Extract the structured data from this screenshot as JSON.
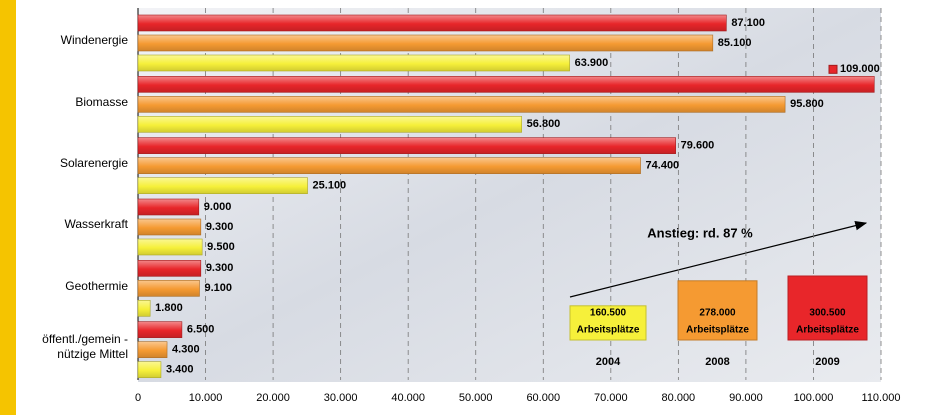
{
  "chart_data": {
    "type": "bar",
    "orientation": "horizontal",
    "categories": [
      "Windenergie",
      "Biomasse",
      "Solarenergie",
      "Wasserkraft",
      "Geothermie",
      "öffentl./gemein -\nnützige Mittel"
    ],
    "series": [
      {
        "name": "2009",
        "color": "#e8262a",
        "values": [
          87100,
          109000,
          79600,
          9000,
          9300,
          6500
        ],
        "value_labels": [
          "87.100",
          "109.000",
          "79.600",
          "9.000",
          "9.300",
          "6.500"
        ],
        "total": 300500,
        "total_label": "300.500",
        "total_text": "Arbeitsplätze"
      },
      {
        "name": "2008",
        "color": "#f59a32",
        "values": [
          85100,
          95800,
          74400,
          9300,
          9100,
          4300
        ],
        "value_labels": [
          "85.100",
          "95.800",
          "74.400",
          "9.300",
          "9.100",
          "4.300"
        ],
        "total": 278000,
        "total_label": "278.000",
        "total_text": "Arbeitsplätze"
      },
      {
        "name": "2004",
        "color": "#f6f03a",
        "values": [
          63900,
          56800,
          25100,
          9500,
          1800,
          3400
        ],
        "value_labels": [
          "63.900",
          "56.800",
          "25.100",
          "9.500",
          "1.800",
          "3.400"
        ],
        "total": 160500,
        "total_label": "160.500",
        "total_text": "Arbeitsplätze"
      }
    ],
    "xlim": [
      0,
      110000
    ],
    "xticks": [
      0,
      {
        "value": 10000,
        "label": "10.000"
      },
      {
        "value": 20000,
        "label": "20.000"
      },
      {
        "value": 30000,
        "label": "30.000"
      },
      {
        "value": 40000,
        "label": "40.000"
      },
      {
        "value": 50000,
        "label": "50.000"
      },
      {
        "value": 60000,
        "label": "60.000"
      },
      {
        "value": 70000,
        "label": "70.000"
      },
      {
        "value": 80000,
        "label": "80.000"
      },
      {
        "value": 90000,
        "label": "90.000"
      },
      {
        "value": 100000,
        "label": "100.000"
      },
      {
        "value": 110000,
        "label": "110.000"
      }
    ],
    "grid": true,
    "annotation": "Anstieg: rd. 87 %"
  }
}
